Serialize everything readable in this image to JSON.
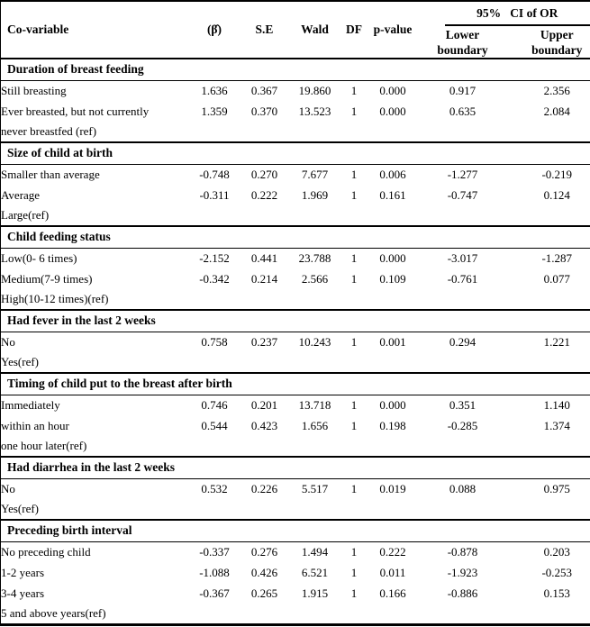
{
  "table": {
    "columns": {
      "covariable": "Co-variable",
      "beta": "(β̂)",
      "se": "S.E",
      "wald": "Wald",
      "df": "DF",
      "pvalue": "p-value",
      "ci_group": "95%   CI of OR",
      "lower": "Lower\nboundary",
      "upper": "Upper\nboundary"
    },
    "sections": [
      {
        "title": "Duration of breast feeding",
        "rows": [
          {
            "label": "Still breasting",
            "beta": "1.636",
            "se": "0.367",
            "wald": "19.860",
            "df": "1",
            "p": "0.000",
            "lower": "0.917",
            "upper": "2.356"
          },
          {
            "label": "Ever breasted, but not currently",
            "beta": "1.359",
            "se": "0.370",
            "wald": "13.523",
            "df": "1",
            "p": "0.000",
            "lower": "0.635",
            "upper": "2.084"
          },
          {
            "label": "never breastfed (ref)"
          }
        ]
      },
      {
        "title": "Size of child at birth",
        "rows": [
          {
            "label": "Smaller than average",
            "beta": "-0.748",
            "se": "0.270",
            "wald": "7.677",
            "df": "1",
            "p": "0.006",
            "lower": "-1.277",
            "upper": "-0.219"
          },
          {
            "label": "Average",
            "beta": "-0.311",
            "se": "0.222",
            "wald": "1.969",
            "df": "1",
            "p": "0.161",
            "lower": "-0.747",
            "upper": "0.124"
          },
          {
            "label": "Large(ref)"
          }
        ]
      },
      {
        "title": "Child feeding status",
        "rows": [
          {
            "label": "Low(0- 6 times)",
            "beta": "-2.152",
            "se": "0.441",
            "wald": "23.788",
            "df": "1",
            "p": "0.000",
            "lower": "-3.017",
            "upper": "-1.287"
          },
          {
            "label": "Medium(7-9 times)",
            "beta": "-0.342",
            "se": "0.214",
            "wald": "2.566",
            "df": "1",
            "p": "0.109",
            "lower": "-0.761",
            "upper": "0.077"
          },
          {
            "label": "High(10-12 times)(ref)"
          }
        ]
      },
      {
        "title": "Had fever in the last 2 weeks",
        "rows": [
          {
            "label": "No",
            "beta": "0.758",
            "se": "0.237",
            "wald": "10.243",
            "df": "1",
            "p": "0.001",
            "lower": "0.294",
            "upper": "1.221"
          },
          {
            "label": "Yes(ref)"
          }
        ]
      },
      {
        "title": "Timing of child put to the breast after birth",
        "rows": [
          {
            "label": "Immediately",
            "beta": "0.746",
            "se": "0.201",
            "wald": "13.718",
            "df": "1",
            "p": "0.000",
            "lower": "0.351",
            "upper": "1.140"
          },
          {
            "label": "within an hour",
            "beta": "0.544",
            "se": "0.423",
            "wald": "1.656",
            "df": "1",
            "p": "0.198",
            "lower": "-0.285",
            "upper": "1.374"
          },
          {
            "label": "one hour later(ref)"
          }
        ]
      },
      {
        "title": "Had diarrhea in the last 2 weeks",
        "rows": [
          {
            "label": "No",
            "beta": "0.532",
            "se": "0.226",
            "wald": "5.517",
            "df": "1",
            "p": "0.019",
            "lower": "0.088",
            "upper": "0.975"
          },
          {
            "label": "Yes(ref)"
          }
        ]
      },
      {
        "title": "Preceding birth interval",
        "rows": [
          {
            "label": "No preceding child",
            "beta": "-0.337",
            "se": "0.276",
            "wald": "1.494",
            "df": "1",
            "p": "0.222",
            "lower": "-0.878",
            "upper": "0.203"
          },
          {
            "label": "1-2 years",
            "beta": "-1.088",
            "se": "0.426",
            "wald": "6.521",
            "df": "1",
            "p": "0.011",
            "lower": "-1.923",
            "upper": "-0.253"
          },
          {
            "label": "3-4 years",
            "beta": "-0.367",
            "se": "0.265",
            "wald": "1.915",
            "df": "1",
            "p": "0.166",
            "lower": "-0.886",
            "upper": "0.153"
          },
          {
            "label": "5 and above years(ref)"
          }
        ]
      }
    ]
  }
}
